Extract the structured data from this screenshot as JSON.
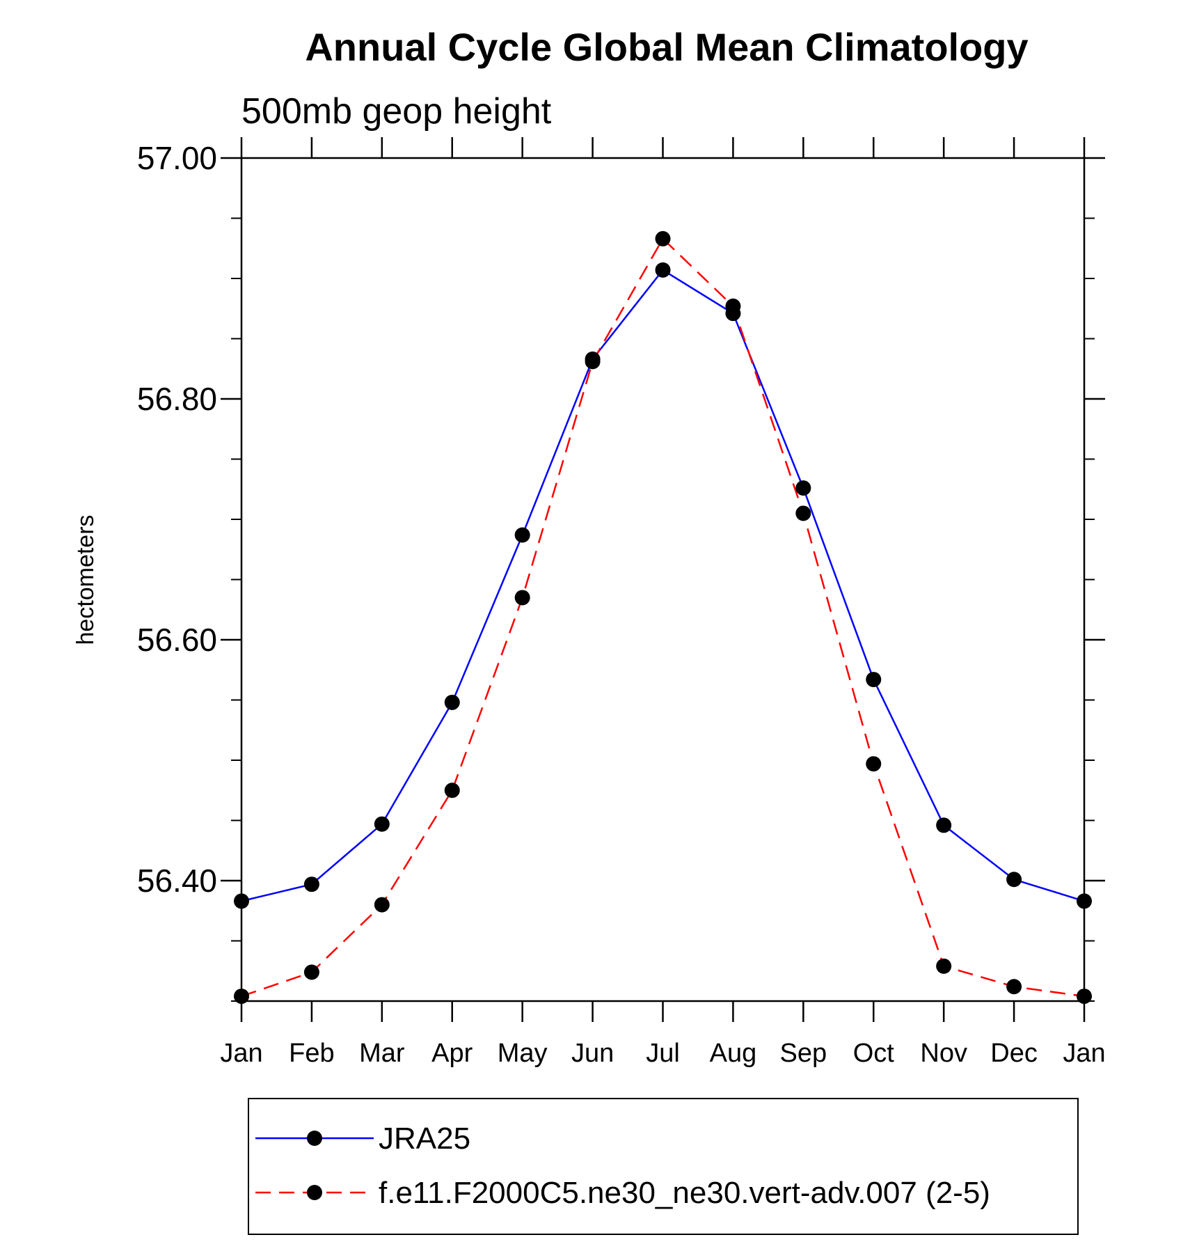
{
  "chart_data": {
    "type": "line",
    "title": "Annual Cycle Global Mean Climatology",
    "subtitle": "500mb geop height",
    "ylabel": "hectometers",
    "xlabel": "",
    "categories": [
      "Jan",
      "Feb",
      "Mar",
      "Apr",
      "May",
      "Jun",
      "Jul",
      "Aug",
      "Sep",
      "Oct",
      "Nov",
      "Dec",
      "Jan"
    ],
    "ylim": [
      56.3,
      57.0
    ],
    "yticks": [
      "57.00",
      "56.80",
      "56.60",
      "56.40"
    ],
    "ytick_values": [
      57.0,
      56.8,
      56.6,
      56.4
    ],
    "yminor_step": 0.05,
    "series": [
      {
        "name": "JRA25",
        "color": "#0000ff",
        "dash": "solid",
        "values": [
          56.383,
          56.397,
          56.447,
          56.548,
          56.687,
          56.833,
          56.907,
          56.871,
          56.726,
          56.567,
          56.446,
          56.401,
          56.383
        ]
      },
      {
        "name": "f.e11.F2000C5.ne30_ne30.vert-adv.007 (2-5)",
        "color": "#ff0000",
        "dash": "dashed",
        "values": [
          56.304,
          56.324,
          56.38,
          56.475,
          56.635,
          56.831,
          56.933,
          56.877,
          56.705,
          56.497,
          56.329,
          56.312,
          56.304
        ]
      }
    ],
    "legend_position": "bottom",
    "grid": false
  }
}
